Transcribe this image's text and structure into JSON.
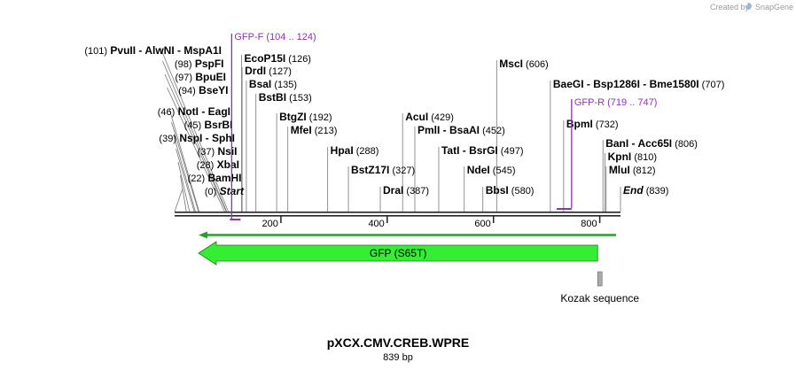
{
  "credit": "Created by",
  "brand": "SnapGene",
  "map": {
    "title": "pXCX.CMV.CREB.WPRE",
    "length_label": "839 bp",
    "total_bp": 839
  },
  "ticks": [
    {
      "bp": 200,
      "label": "200"
    },
    {
      "bp": 400,
      "label": "400"
    },
    {
      "bp": 600,
      "label": "600"
    },
    {
      "bp": 800,
      "label": "800"
    }
  ],
  "left_sites": [
    {
      "parts": [
        {
          "pos": "(101)"
        },
        {
          "name": "PvuII"
        },
        {
          "name": "AlwNI"
        },
        {
          "name": "MspA1I"
        }
      ],
      "bp": 101
    },
    {
      "parts": [
        {
          "pos": "(98)"
        },
        {
          "name": "PspFI"
        }
      ],
      "bp": 98
    },
    {
      "parts": [
        {
          "pos": "(97)"
        },
        {
          "name": "BpuEI"
        }
      ],
      "bp": 97
    },
    {
      "parts": [
        {
          "pos": "(94)"
        },
        {
          "name": "BseYI"
        }
      ],
      "bp": 94
    },
    {
      "parts": [
        {
          "pos": "(46)"
        },
        {
          "name": "NotI"
        },
        {
          "name": "EagI"
        }
      ],
      "bp": 46
    },
    {
      "parts": [
        {
          "pos": "(45)"
        },
        {
          "name": "BsrBI"
        }
      ],
      "bp": 45
    },
    {
      "parts": [
        {
          "pos": "(39)"
        },
        {
          "name": "NspI"
        },
        {
          "name": "SphI"
        }
      ],
      "bp": 39
    },
    {
      "parts": [
        {
          "pos": "(37)"
        },
        {
          "name": "NsiI"
        }
      ],
      "bp": 37
    },
    {
      "parts": [
        {
          "pos": "(28)"
        },
        {
          "name": "XbaI"
        }
      ],
      "bp": 28
    },
    {
      "parts": [
        {
          "pos": "(22)"
        },
        {
          "name": "BamHI"
        }
      ],
      "bp": 22
    },
    {
      "parts": [
        {
          "pos": "(0)"
        },
        {
          "name": "Start",
          "italic": true
        }
      ],
      "bp": 0
    }
  ],
  "right_sites": [
    {
      "parts": [
        {
          "name": "EcoP15I"
        },
        {
          "pos": "(126)"
        }
      ],
      "bp": 126
    },
    {
      "parts": [
        {
          "name": "DrdI"
        },
        {
          "pos": "(127)"
        }
      ],
      "bp": 127
    },
    {
      "parts": [
        {
          "name": "BsaI"
        },
        {
          "pos": "(135)"
        }
      ],
      "bp": 135
    },
    {
      "parts": [
        {
          "name": "BstBI"
        },
        {
          "pos": "(153)"
        }
      ],
      "bp": 153
    },
    {
      "parts": [
        {
          "name": "BtgZI"
        },
        {
          "pos": "(192)"
        }
      ],
      "bp": 192
    },
    {
      "parts": [
        {
          "name": "MfeI"
        },
        {
          "pos": "(213)"
        }
      ],
      "bp": 213
    },
    {
      "parts": [
        {
          "name": "HpaI"
        },
        {
          "pos": "(288)"
        }
      ],
      "bp": 288
    },
    {
      "parts": [
        {
          "name": "BstZ17I"
        },
        {
          "pos": "(327)"
        }
      ],
      "bp": 327
    },
    {
      "parts": [
        {
          "name": "DraI"
        },
        {
          "pos": "(387)"
        }
      ],
      "bp": 387
    },
    {
      "parts": [
        {
          "name": "AcuI"
        },
        {
          "pos": "(429)"
        }
      ],
      "bp": 429
    },
    {
      "parts": [
        {
          "name": "PmlI"
        },
        {
          "name": "BsaAI"
        },
        {
          "pos": "(452)"
        }
      ],
      "bp": 452
    },
    {
      "parts": [
        {
          "name": "TatI"
        },
        {
          "name": "BsrGI"
        },
        {
          "pos": "(497)"
        }
      ],
      "bp": 497
    },
    {
      "parts": [
        {
          "name": "NdeI"
        },
        {
          "pos": "(545)"
        }
      ],
      "bp": 545
    },
    {
      "parts": [
        {
          "name": "BbsI"
        },
        {
          "pos": "(580)"
        }
      ],
      "bp": 580
    },
    {
      "parts": [
        {
          "name": "MscI"
        },
        {
          "pos": "(606)"
        }
      ],
      "bp": 606
    },
    {
      "parts": [
        {
          "name": "BaeGI"
        },
        {
          "name": "Bsp1286I"
        },
        {
          "name": "Bme1580I"
        },
        {
          "pos": "(707)"
        }
      ],
      "bp": 707
    },
    {
      "parts": [
        {
          "name": "BpmI"
        },
        {
          "pos": "(732)"
        }
      ],
      "bp": 732
    },
    {
      "parts": [
        {
          "name": "BanI"
        },
        {
          "name": "Acc65I"
        },
        {
          "pos": "(806)"
        }
      ],
      "bp": 806
    },
    {
      "parts": [
        {
          "name": "KpnI"
        },
        {
          "pos": "(810)"
        }
      ],
      "bp": 810
    },
    {
      "parts": [
        {
          "name": "MluI"
        },
        {
          "pos": "(812)"
        }
      ],
      "bp": 812
    },
    {
      "parts": [
        {
          "name": "End",
          "italic": true
        },
        {
          "pos": "(839)"
        }
      ],
      "bp": 839
    }
  ],
  "primers": [
    {
      "name": "GFP-F",
      "range": "(104 .. 124)",
      "start": 104,
      "end": 124,
      "direction": "forward"
    },
    {
      "name": "GFP-R",
      "range": "(719 .. 747)",
      "start": 719,
      "end": 747,
      "direction": "reverse"
    }
  ],
  "features": [
    {
      "name": "GFP (S65T)",
      "start": 45,
      "end": 796,
      "direction": "reverse",
      "color": "#33ee33"
    },
    {
      "name": "Kozak sequence",
      "start": 796,
      "end": 806,
      "color": "#aaaaaa"
    }
  ],
  "orf": {
    "start": 45,
    "end": 839,
    "direction": "reverse",
    "color": "#2a9d2a"
  },
  "colors": {
    "primer": "#8e2ec5",
    "backbone": "#222222",
    "feature": "#33ee33",
    "kozak": "#aaaaaa"
  }
}
